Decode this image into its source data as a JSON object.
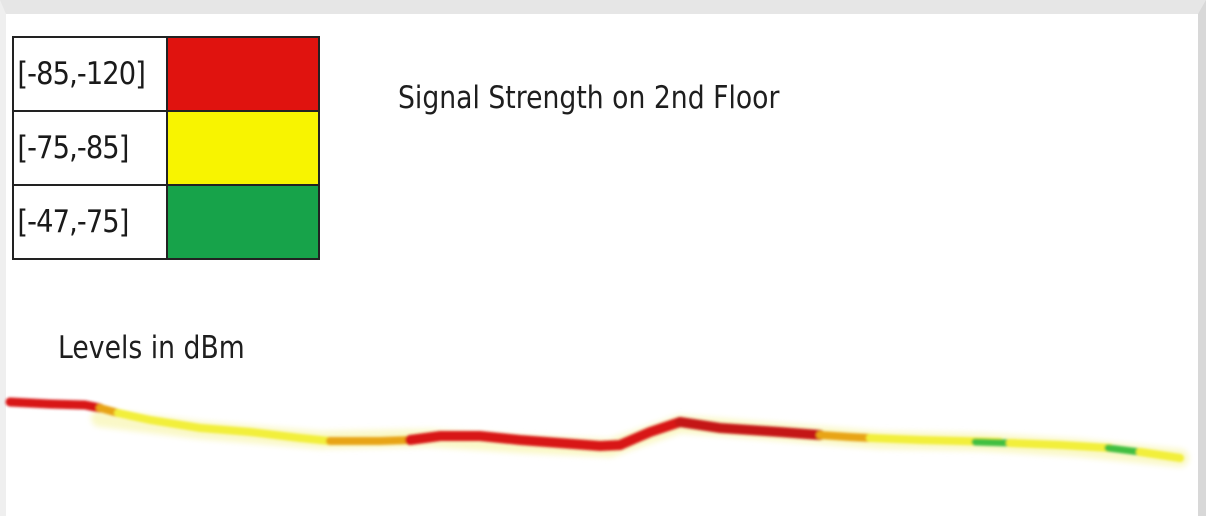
{
  "title": "Signal Strength on 2nd Floor",
  "units_label": "Levels in dBm",
  "legend": [
    {
      "range": "[-85,-120]",
      "color": "#e0130f"
    },
    {
      "range": "[-75,-85]",
      "color": "#f8f400"
    },
    {
      "range": "[-47,-75]",
      "color": "#17a34a"
    }
  ],
  "route_colors": {
    "red": "#d81818",
    "orange": "#e8a418",
    "yellow": "#f2ef3a",
    "green": "#3fbf3f"
  }
}
